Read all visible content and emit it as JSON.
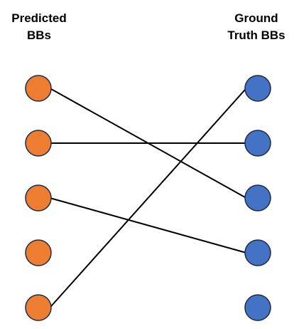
{
  "left_column": {
    "title_lines": [
      "Predicted",
      "BBs"
    ],
    "node_count": 5,
    "fill": "#ED7D31",
    "stroke": "#1F2A44"
  },
  "right_column": {
    "title_lines": [
      "Ground",
      "Truth BBs"
    ],
    "node_count": 5,
    "fill": "#4472C4",
    "stroke": "#1F2A44"
  },
  "edge_color": "#000000",
  "matches": [
    {
      "predicted": 1,
      "ground_truth": 3
    },
    {
      "predicted": 2,
      "ground_truth": 2
    },
    {
      "predicted": 3,
      "ground_truth": 4
    },
    {
      "predicted": 5,
      "ground_truth": 1
    }
  ]
}
